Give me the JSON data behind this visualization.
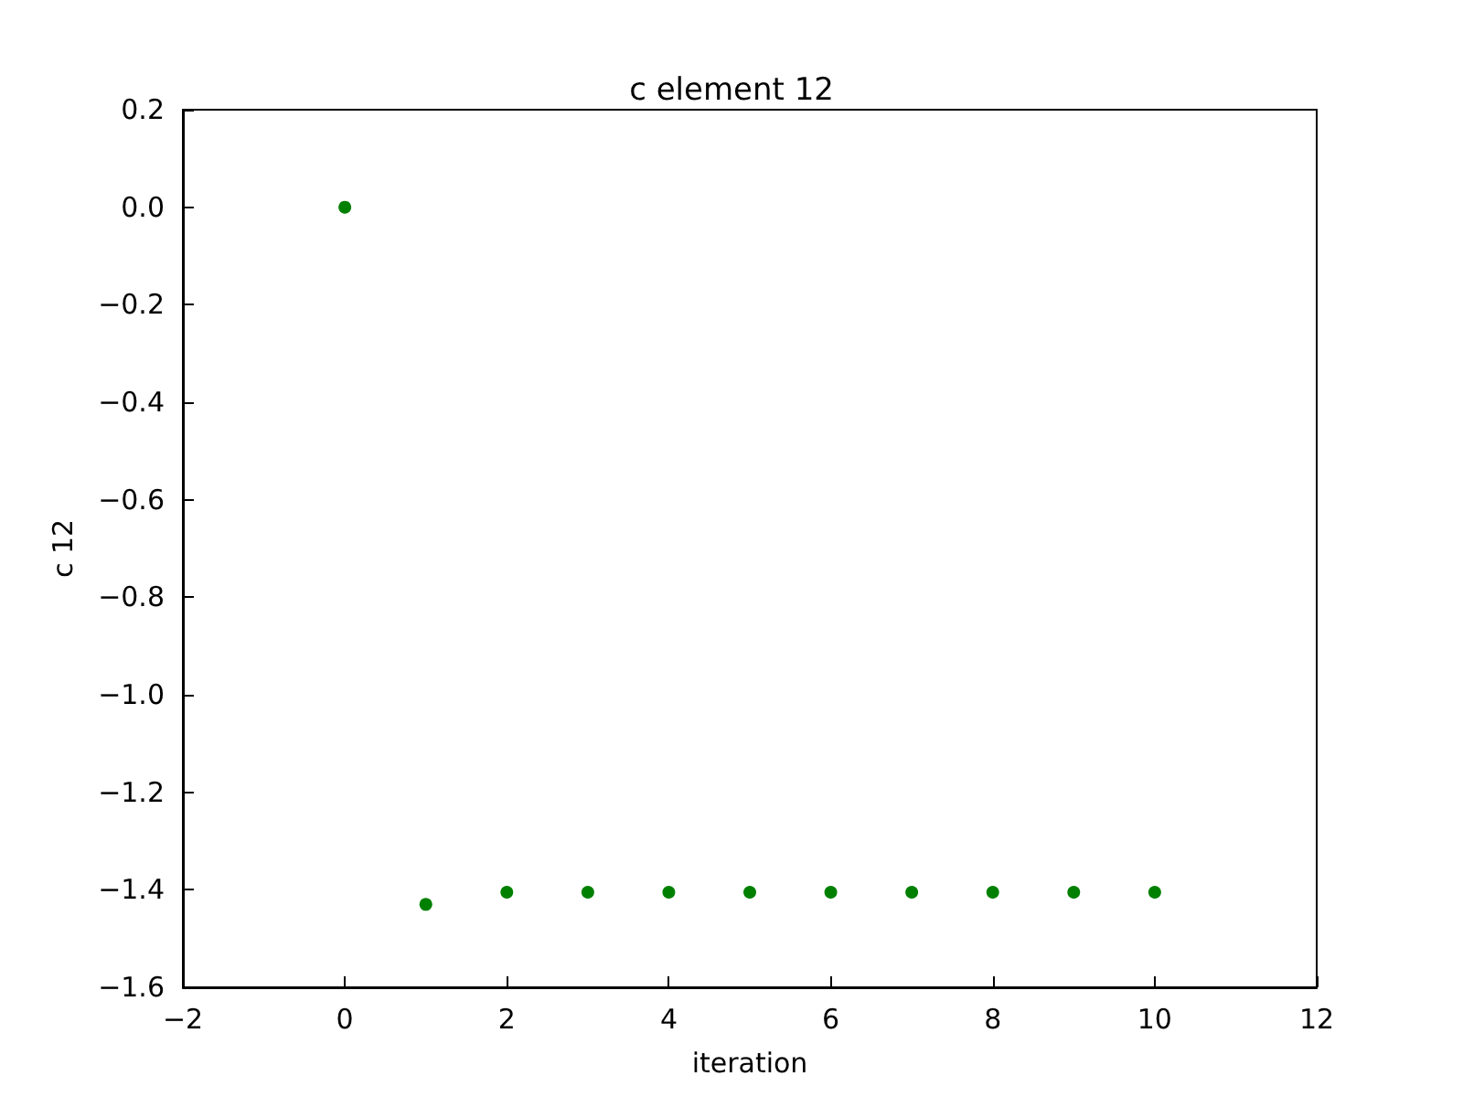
{
  "chart_data": {
    "type": "scatter",
    "title": "c element 12",
    "xlabel": "iteration",
    "ylabel": "c 12",
    "x": [
      0,
      1,
      2,
      3,
      4,
      5,
      6,
      7,
      8,
      9,
      10
    ],
    "values": [
      0.0,
      -1.43,
      -1.405,
      -1.405,
      -1.405,
      -1.405,
      -1.405,
      -1.405,
      -1.405,
      -1.405,
      -1.405
    ],
    "color": "#008000",
    "marker": "circle",
    "grid": false,
    "xlim": [
      -2,
      12
    ],
    "xticks": [
      {
        "value": -2,
        "label": "−2"
      },
      0,
      2,
      4,
      6,
      8,
      10,
      12
    ],
    "ylim": [
      -1.6,
      0.2
    ],
    "yticks": [
      {
        "value": -1.6,
        "label": "−1.6"
      },
      {
        "value": -1.4,
        "label": "−1.4"
      },
      {
        "value": -1.2,
        "label": "−1.2"
      },
      {
        "value": -1.0,
        "label": "−1.0"
      },
      {
        "value": -0.8,
        "label": "−0.8"
      },
      {
        "value": -0.6,
        "label": "−0.6"
      },
      {
        "value": -0.4,
        "label": "−0.4"
      },
      {
        "value": -0.2,
        "label": "−0.2"
      },
      {
        "value": 0,
        "label": "0.0"
      },
      {
        "value": 0.2,
        "label": "0.2"
      }
    ]
  }
}
